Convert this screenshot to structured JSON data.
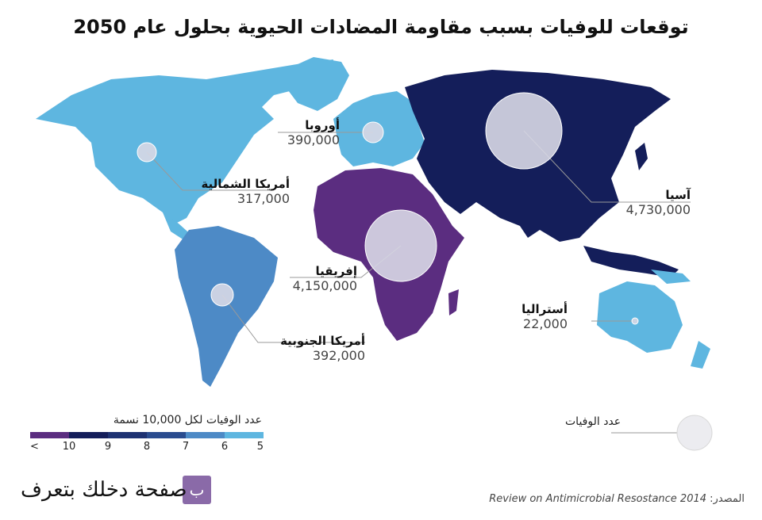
{
  "title": "توقعات للوفيات بسبب مقاومة المضادات الحيوية بحلول عام 2050",
  "colors": {
    "scale_10plus": "#5b2d80",
    "scale_9": "#141e5a",
    "scale_8": "#1e3272",
    "scale_7": "#2a4c8f",
    "scale_6": "#4d8ac6",
    "scale_5": "#5eb6e0",
    "bubble": "#d8d8e6"
  },
  "regions": [
    {
      "id": "north-america",
      "name": "أمريكا الشمالية",
      "deaths": "317,000",
      "scale": "5"
    },
    {
      "id": "europe",
      "name": "أوروبا",
      "deaths": "390,000",
      "scale": "5"
    },
    {
      "id": "asia",
      "name": "آسيا",
      "deaths": "4,730,000",
      "scale": "9"
    },
    {
      "id": "africa",
      "name": "إفريقيا",
      "deaths": "4,150,000",
      "scale": "10+"
    },
    {
      "id": "south-america",
      "name": "أمريكا الجنوبية",
      "deaths": "392,000",
      "scale": "6"
    },
    {
      "id": "australia",
      "name": "أستراليا",
      "deaths": "22,000",
      "scale": "5"
    }
  ],
  "legend": {
    "title": "عدد الوفيات لكل 10,000 نسمة",
    "ticks": [
      "5",
      "6",
      "7",
      "8",
      "9",
      "10",
      "<"
    ]
  },
  "bubble_legend": {
    "label": "عدد الوفيات"
  },
  "source": {
    "label": "المصدر:",
    "text": "Review on Antimicrobial Resostance 2014"
  },
  "logo": {
    "text": "صفحة دخلك بتعرف",
    "icon": "logo-icon"
  }
}
